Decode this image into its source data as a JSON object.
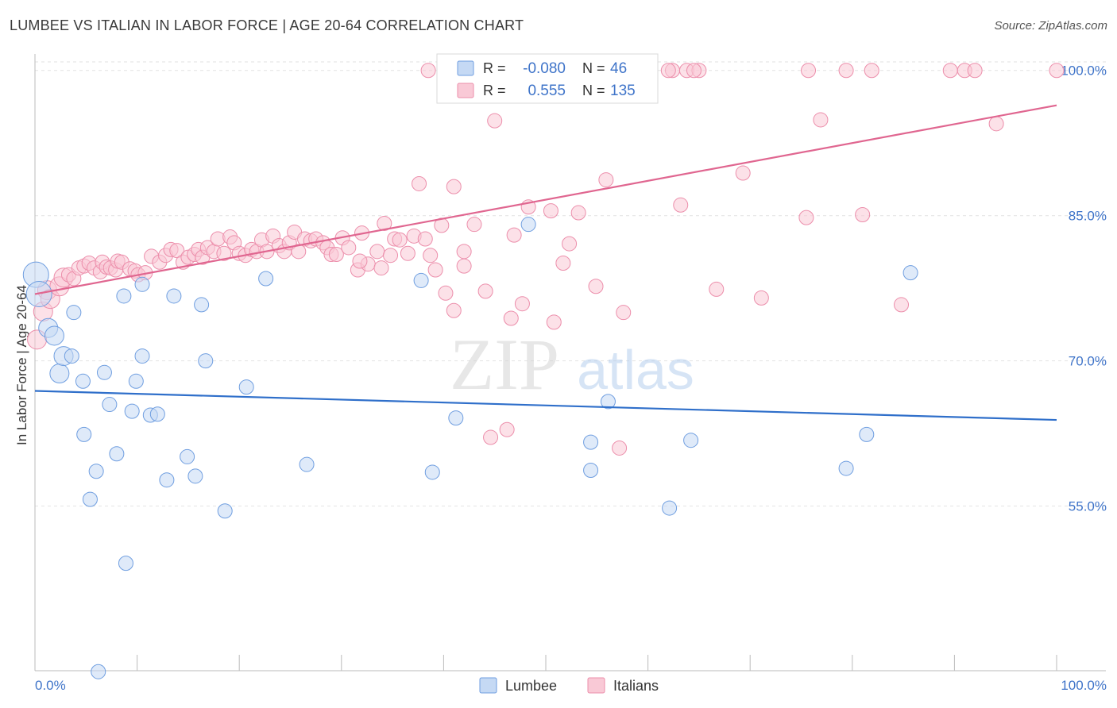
{
  "title": "LUMBEE VS ITALIAN IN LABOR FORCE | AGE 20-64 CORRELATION CHART",
  "source": "Source: ZipAtlas.com",
  "watermark": {
    "zip": "ZIP",
    "atlas": "atlas"
  },
  "legend_box": {
    "rows": [
      {
        "r_label": "R =",
        "r_value": "-0.080",
        "n_label": "N =",
        "n_value": "46"
      },
      {
        "r_label": "R =",
        "r_value": "0.555",
        "n_label": "N =",
        "n_value": "135"
      }
    ]
  },
  "bottom_legend": {
    "items": [
      "Lumbee",
      "Italians"
    ]
  },
  "colors": {
    "lumbee_fill": "#c5d9f4",
    "lumbee_stroke": "#6f9ee0",
    "lumbee_line": "#2f6fca",
    "italians_fill": "#f9c9d6",
    "italians_stroke": "#ec8eab",
    "italians_line": "#e06690",
    "axis_text": "#3f74c9",
    "grid": "#e2e2e2"
  },
  "chart_data": {
    "type": "scatter",
    "title": "LUMBEE VS ITALIAN IN LABOR FORCE | AGE 20-64 CORRELATION CHART",
    "xlabel": "",
    "ylabel": "In Labor Force | Age 20-64",
    "xlim": [
      0,
      100
    ],
    "ylim": [
      38,
      101.7
    ],
    "x_tick_labels": [
      "0.0%",
      "100.0%"
    ],
    "y_ticks": [
      55,
      70,
      85,
      100
    ],
    "y_tick_labels": [
      "55.0%",
      "70.0%",
      "85.0%",
      "100.0%"
    ],
    "grid": true,
    "legend_position": "top-center",
    "series": [
      {
        "name": "Lumbee",
        "R": -0.08,
        "N": 46,
        "trend": {
          "x": [
            0,
            100
          ],
          "y": [
            66.9,
            63.9
          ]
        },
        "points": [
          [
            0.1,
            78.9
          ],
          [
            0.4,
            76.9
          ],
          [
            1.3,
            73.4
          ],
          [
            1.9,
            72.6
          ],
          [
            2.4,
            68.7
          ],
          [
            2.8,
            70.5
          ],
          [
            3.6,
            70.5
          ],
          [
            3.8,
            75
          ],
          [
            4.8,
            62.4
          ],
          [
            4.7,
            67.9
          ],
          [
            5.4,
            55.7
          ],
          [
            6.0,
            58.6
          ],
          [
            6.8,
            68.8
          ],
          [
            7.3,
            65.5
          ],
          [
            8.0,
            60.4
          ],
          [
            8.9,
            49.1
          ],
          [
            8.7,
            76.7
          ],
          [
            9.5,
            64.8
          ],
          [
            9.9,
            67.9
          ],
          [
            10.5,
            70.5
          ],
          [
            10.5,
            77.9
          ],
          [
            11.3,
            64.4
          ],
          [
            12.0,
            64.5
          ],
          [
            12.9,
            57.7
          ],
          [
            13.6,
            76.7
          ],
          [
            14.9,
            60.1
          ],
          [
            15.7,
            58.1
          ],
          [
            16.3,
            75.8
          ],
          [
            16.7,
            70.0
          ],
          [
            18.6,
            54.5
          ],
          [
            20.7,
            67.3
          ],
          [
            22.6,
            78.5
          ],
          [
            26.6,
            59.3
          ],
          [
            37.8,
            78.3
          ],
          [
            38.9,
            58.5
          ],
          [
            41.2,
            64.1
          ],
          [
            48.3,
            84.1
          ],
          [
            56.1,
            65.8
          ],
          [
            54.4,
            61.6
          ],
          [
            54.4,
            58.7
          ],
          [
            62.1,
            54.8
          ],
          [
            64.2,
            61.8
          ],
          [
            79.4,
            58.9
          ],
          [
            81.4,
            62.4
          ],
          [
            85.7,
            79.1
          ],
          [
            6.2,
            37.9
          ]
        ]
      },
      {
        "name": "Italians",
        "R": 0.555,
        "N": 135,
        "trend": {
          "x": [
            0,
            100
          ],
          "y": [
            76.9,
            96.4
          ]
        },
        "points": [
          [
            0.2,
            72.2
          ],
          [
            0.8,
            75.1
          ],
          [
            1.2,
            77.3
          ],
          [
            1.5,
            76.4
          ],
          [
            2.4,
            77.7
          ],
          [
            2.8,
            78.6
          ],
          [
            3.3,
            78.9
          ],
          [
            3.8,
            78.5
          ],
          [
            4.3,
            79.6
          ],
          [
            4.8,
            79.8
          ],
          [
            5.3,
            80.1
          ],
          [
            5.8,
            79.6
          ],
          [
            6.4,
            79.2
          ],
          [
            6.6,
            80.2
          ],
          [
            7.0,
            79.7
          ],
          [
            7.4,
            79.6
          ],
          [
            7.9,
            79.4
          ],
          [
            8.1,
            80.3
          ],
          [
            8.5,
            80.2
          ],
          [
            9.3,
            79.5
          ],
          [
            9.8,
            79.3
          ],
          [
            10.1,
            78.9
          ],
          [
            10.8,
            79.1
          ],
          [
            11.4,
            80.8
          ],
          [
            12.2,
            80.2
          ],
          [
            12.8,
            80.9
          ],
          [
            13.3,
            81.5
          ],
          [
            13.9,
            81.4
          ],
          [
            14.5,
            80.2
          ],
          [
            15.0,
            80.7
          ],
          [
            15.6,
            81.0
          ],
          [
            16.0,
            81.5
          ],
          [
            16.4,
            80.7
          ],
          [
            16.9,
            81.7
          ],
          [
            17.5,
            81.3
          ],
          [
            17.9,
            82.6
          ],
          [
            18.5,
            81.1
          ],
          [
            19.1,
            82.8
          ],
          [
            19.5,
            82.2
          ],
          [
            20.0,
            81.1
          ],
          [
            20.6,
            80.9
          ],
          [
            21.2,
            81.5
          ],
          [
            21.7,
            81.3
          ],
          [
            22.2,
            82.5
          ],
          [
            22.7,
            81.3
          ],
          [
            23.3,
            82.9
          ],
          [
            23.9,
            81.9
          ],
          [
            24.4,
            81.3
          ],
          [
            24.9,
            82.2
          ],
          [
            25.4,
            83.3
          ],
          [
            25.8,
            81.3
          ],
          [
            26.4,
            82.6
          ],
          [
            27.0,
            82.4
          ],
          [
            27.5,
            82.6
          ],
          [
            28.2,
            82.2
          ],
          [
            28.6,
            81.7
          ],
          [
            29.0,
            81.0
          ],
          [
            29.5,
            81.0
          ],
          [
            30.1,
            82.7
          ],
          [
            30.7,
            81.7
          ],
          [
            31.6,
            79.4
          ],
          [
            32.0,
            83.2
          ],
          [
            32.6,
            80.0
          ],
          [
            33.5,
            81.3
          ],
          [
            33.9,
            79.6
          ],
          [
            34.2,
            84.2
          ],
          [
            34.8,
            80.9
          ],
          [
            35.2,
            82.6
          ],
          [
            35.7,
            82.5
          ],
          [
            36.5,
            81.1
          ],
          [
            37.1,
            82.9
          ],
          [
            37.6,
            88.3
          ],
          [
            38.2,
            82.6
          ],
          [
            38.7,
            80.9
          ],
          [
            39.2,
            79.4
          ],
          [
            39.8,
            84.0
          ],
          [
            40.2,
            77.0
          ],
          [
            41.0,
            88.0
          ],
          [
            41.0,
            75.2
          ],
          [
            42.0,
            81.3
          ],
          [
            42.0,
            79.8
          ],
          [
            43.0,
            84.1
          ],
          [
            44.1,
            77.2
          ],
          [
            44.6,
            62.1
          ],
          [
            45.0,
            94.8
          ],
          [
            46.2,
            62.9
          ],
          [
            46.6,
            74.4
          ],
          [
            46.9,
            83.0
          ],
          [
            47.7,
            75.9
          ],
          [
            48.3,
            85.9
          ],
          [
            50.5,
            85.5
          ],
          [
            50.8,
            74.0
          ],
          [
            51.7,
            80.1
          ],
          [
            52.3,
            82.1
          ],
          [
            53.2,
            85.3
          ],
          [
            54.9,
            77.7
          ],
          [
            55.9,
            88.7
          ],
          [
            57.2,
            61.0
          ],
          [
            57.6,
            75.0
          ],
          [
            62.4,
            100
          ],
          [
            63.2,
            86.1
          ],
          [
            63.8,
            100
          ],
          [
            65.0,
            100
          ],
          [
            66.7,
            77.4
          ],
          [
            69.3,
            89.4
          ],
          [
            71.1,
            76.5
          ],
          [
            75.5,
            84.8
          ],
          [
            75.7,
            100
          ],
          [
            76.9,
            94.9
          ],
          [
            79.4,
            100
          ],
          [
            81.0,
            85.1
          ],
          [
            81.9,
            100
          ],
          [
            84.8,
            75.8
          ],
          [
            89.6,
            100
          ],
          [
            91.0,
            100
          ],
          [
            92.0,
            100
          ],
          [
            94.1,
            94.5
          ],
          [
            100,
            100
          ],
          [
            53.0,
            100
          ],
          [
            54.5,
            100
          ],
          [
            56.0,
            100
          ],
          [
            58.0,
            100
          ],
          [
            59.7,
            100
          ],
          [
            38.5,
            100
          ],
          [
            40.1,
            100
          ],
          [
            43.5,
            100
          ],
          [
            46.0,
            100
          ],
          [
            48.5,
            100
          ],
          [
            50.6,
            100
          ],
          [
            52.1,
            100
          ],
          [
            55.5,
            100
          ],
          [
            57.5,
            100
          ],
          [
            62.0,
            100
          ],
          [
            64.5,
            100
          ],
          [
            31.8,
            80.3
          ]
        ]
      }
    ]
  }
}
